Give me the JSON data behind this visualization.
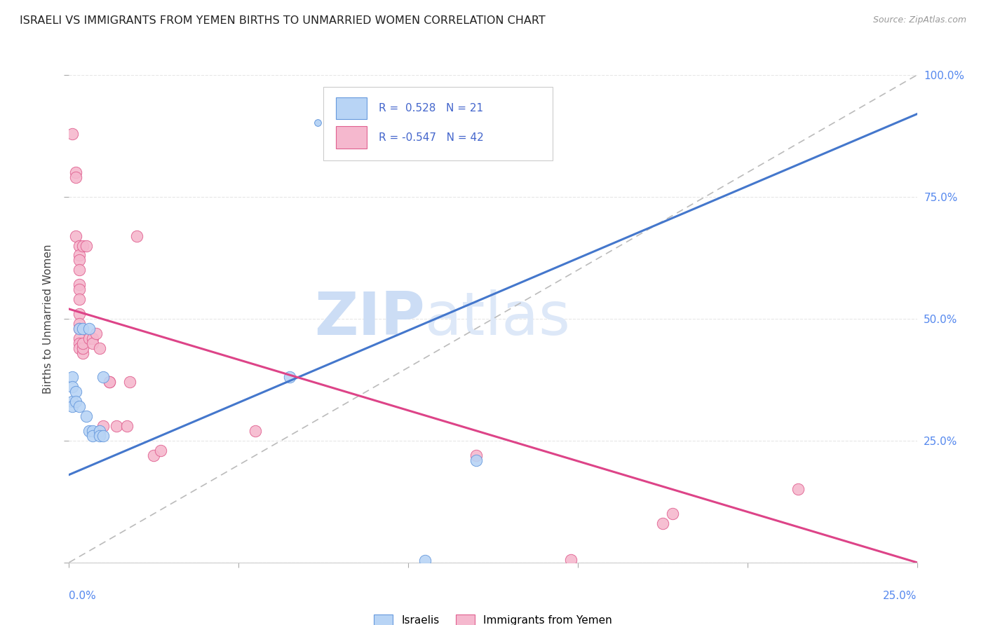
{
  "title": "ISRAELI VS IMMIGRANTS FROM YEMEN BIRTHS TO UNMARRIED WOMEN CORRELATION CHART",
  "source": "Source: ZipAtlas.com",
  "ylabel_label": "Births to Unmarried Women",
  "legend_blue_label": "Israelis",
  "legend_pink_label": "Immigrants from Yemen",
  "r_blue": 0.528,
  "n_blue": 21,
  "r_pink": -0.547,
  "n_pink": 42,
  "blue_color": "#b8d4f5",
  "pink_color": "#f5b8ce",
  "blue_edge_color": "#6699dd",
  "pink_edge_color": "#e06090",
  "blue_line_color": "#4477cc",
  "pink_line_color": "#dd4488",
  "ref_line_color": "#bbbbbb",
  "blue_scatter": [
    [
      0.001,
      0.38
    ],
    [
      0.001,
      0.36
    ],
    [
      0.001,
      0.33
    ],
    [
      0.001,
      0.32
    ],
    [
      0.002,
      0.35
    ],
    [
      0.002,
      0.33
    ],
    [
      0.003,
      0.48
    ],
    [
      0.003,
      0.32
    ],
    [
      0.004,
      0.48
    ],
    [
      0.005,
      0.3
    ],
    [
      0.006,
      0.48
    ],
    [
      0.006,
      0.27
    ],
    [
      0.007,
      0.27
    ],
    [
      0.007,
      0.26
    ],
    [
      0.009,
      0.27
    ],
    [
      0.009,
      0.26
    ],
    [
      0.01,
      0.38
    ],
    [
      0.01,
      0.26
    ],
    [
      0.065,
      0.38
    ],
    [
      0.105,
      0.004
    ],
    [
      0.12,
      0.21
    ]
  ],
  "pink_scatter": [
    [
      0.001,
      0.88
    ],
    [
      0.002,
      0.8
    ],
    [
      0.002,
      0.79
    ],
    [
      0.002,
      0.67
    ],
    [
      0.003,
      0.65
    ],
    [
      0.003,
      0.63
    ],
    [
      0.003,
      0.62
    ],
    [
      0.003,
      0.6
    ],
    [
      0.003,
      0.57
    ],
    [
      0.003,
      0.56
    ],
    [
      0.003,
      0.54
    ],
    [
      0.003,
      0.51
    ],
    [
      0.003,
      0.49
    ],
    [
      0.003,
      0.48
    ],
    [
      0.003,
      0.46
    ],
    [
      0.003,
      0.45
    ],
    [
      0.003,
      0.44
    ],
    [
      0.004,
      0.43
    ],
    [
      0.004,
      0.44
    ],
    [
      0.004,
      0.45
    ],
    [
      0.004,
      0.65
    ],
    [
      0.005,
      0.65
    ],
    [
      0.006,
      0.46
    ],
    [
      0.007,
      0.46
    ],
    [
      0.007,
      0.45
    ],
    [
      0.008,
      0.47
    ],
    [
      0.009,
      0.44
    ],
    [
      0.01,
      0.28
    ],
    [
      0.012,
      0.37
    ],
    [
      0.012,
      0.37
    ],
    [
      0.014,
      0.28
    ],
    [
      0.017,
      0.28
    ],
    [
      0.018,
      0.37
    ],
    [
      0.02,
      0.67
    ],
    [
      0.025,
      0.22
    ],
    [
      0.027,
      0.23
    ],
    [
      0.055,
      0.27
    ],
    [
      0.12,
      0.22
    ],
    [
      0.148,
      0.006
    ],
    [
      0.175,
      0.08
    ],
    [
      0.178,
      0.1
    ],
    [
      0.215,
      0.15
    ]
  ],
  "blue_line_x0": 0.0,
  "blue_line_y0": 0.18,
  "blue_line_x1": 0.25,
  "blue_line_y1": 0.92,
  "pink_line_x0": 0.0,
  "pink_line_y0": 0.52,
  "pink_line_x1": 0.25,
  "pink_line_y1": 0.0,
  "xmin": 0.0,
  "xmax": 0.25,
  "ymin": 0.0,
  "ymax": 1.0,
  "yticks": [
    0.0,
    0.25,
    0.5,
    0.75,
    1.0
  ],
  "ytick_labels": [
    "",
    "25.0%",
    "50.0%",
    "75.0%",
    "100.0%"
  ],
  "watermark_zip": "ZIP",
  "watermark_atlas": "atlas",
  "background_color": "#ffffff",
  "grid_color": "#e0e0e0"
}
